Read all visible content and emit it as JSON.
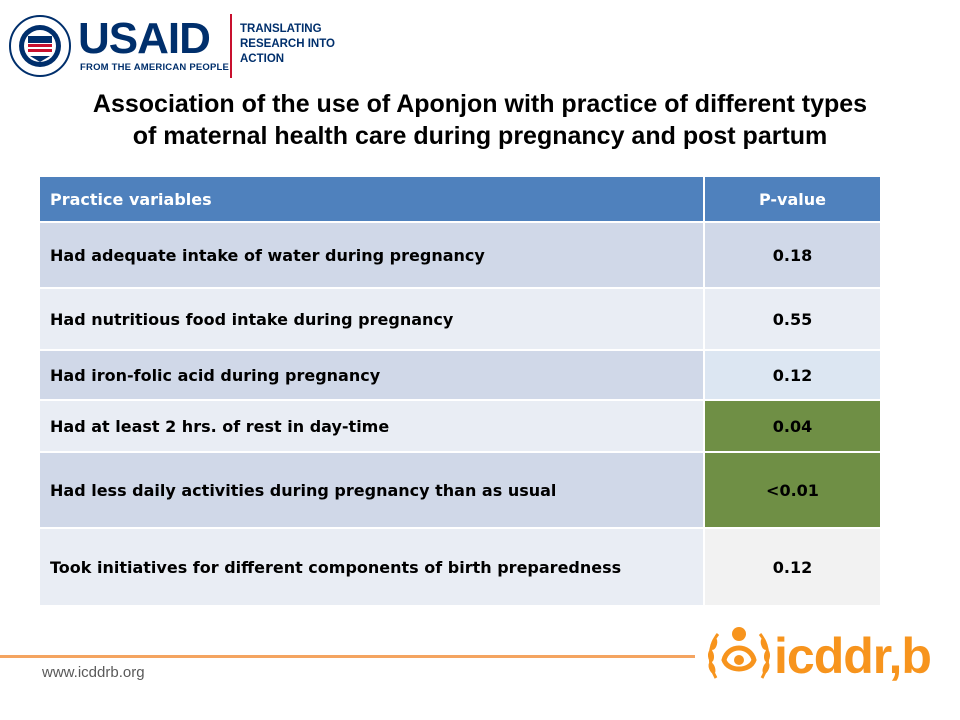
{
  "header": {
    "usaid_logo": {
      "seal_lettering": "UNITED STATES AGENCY FOR INTERNATIONAL DEVELOPMENT",
      "wordmark": "USAID",
      "tagline": "FROM THE AMERICAN PEOPLE"
    },
    "sub_logo_lines": [
      "TRANSLATING",
      "RESEARCH INTO",
      "ACTION"
    ]
  },
  "title_lines": [
    "Association of the use of Aponjon with practice of different types",
    "of maternal health care during pregnancy and post partum"
  ],
  "table": {
    "headers": [
      "Practice variables",
      "P-value"
    ],
    "rows": [
      {
        "variable": "Had adequate intake of water during pregnancy",
        "p_value": "0.18",
        "significant": false
      },
      {
        "variable": "Had nutritious food intake during pregnancy",
        "p_value": "0.55",
        "significant": false
      },
      {
        "variable": "Had iron-folic acid during pregnancy",
        "p_value": "0.12",
        "significant": false
      },
      {
        "variable": "Had at least 2 hrs. of rest in day-time",
        "p_value": "0.04",
        "significant": true
      },
      {
        "variable": "Had less daily activities during pregnancy than as usual",
        "p_value": "<0.01",
        "significant": true
      },
      {
        "variable": "Took initiatives for different components of birth preparedness",
        "p_value": "0.12",
        "significant": false
      }
    ]
  },
  "footer": {
    "url": "www.icddrb.org",
    "logo_text": "icddr,b"
  },
  "colors": {
    "header_blue": "#4f81bd",
    "significant_green": "#6f8f45",
    "usaid_navy": "#002f6c",
    "usaid_red": "#c8102e",
    "icddrb_orange": "#f7941d"
  }
}
